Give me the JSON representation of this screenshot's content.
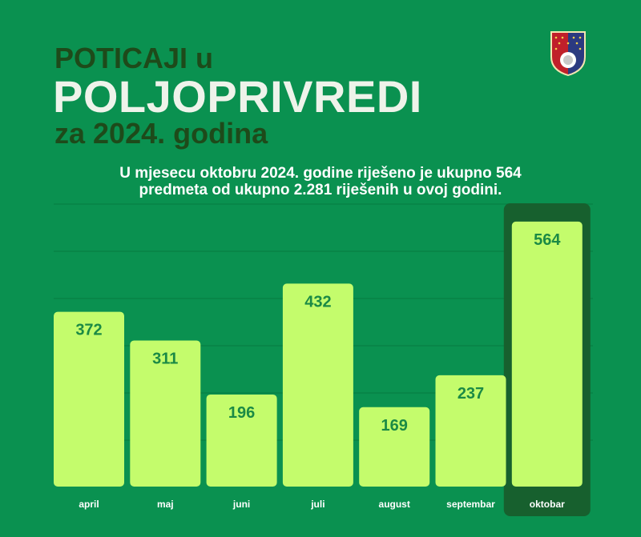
{
  "header": {
    "title_line1": "POTICAJI u",
    "title_line2": "POLJOPRIVREDI",
    "title_line3": "za 2024. godina",
    "subtitle_line1": "U mjesecu oktobru 2024. godine riješeno je ukupno 564",
    "subtitle_line2": "predmeta od ukupno 2.281 riješenih u ovoj godini.",
    "logo": "coat-of-arms"
  },
  "colors": {
    "background": "#0a9150",
    "bar": "#c4fc6c",
    "value_text": "#1b8a45",
    "highlight": "#17602e"
  },
  "chart_data": {
    "type": "bar",
    "title": "",
    "xlabel": "",
    "ylabel": "",
    "categories": [
      "april",
      "maj",
      "juni",
      "juli",
      "august",
      "septembar",
      "oktobar"
    ],
    "values": [
      372,
      311,
      196,
      432,
      169,
      237,
      564
    ],
    "highlighted_category": "oktobar",
    "ylim": [
      0,
      600
    ],
    "grid": true
  }
}
